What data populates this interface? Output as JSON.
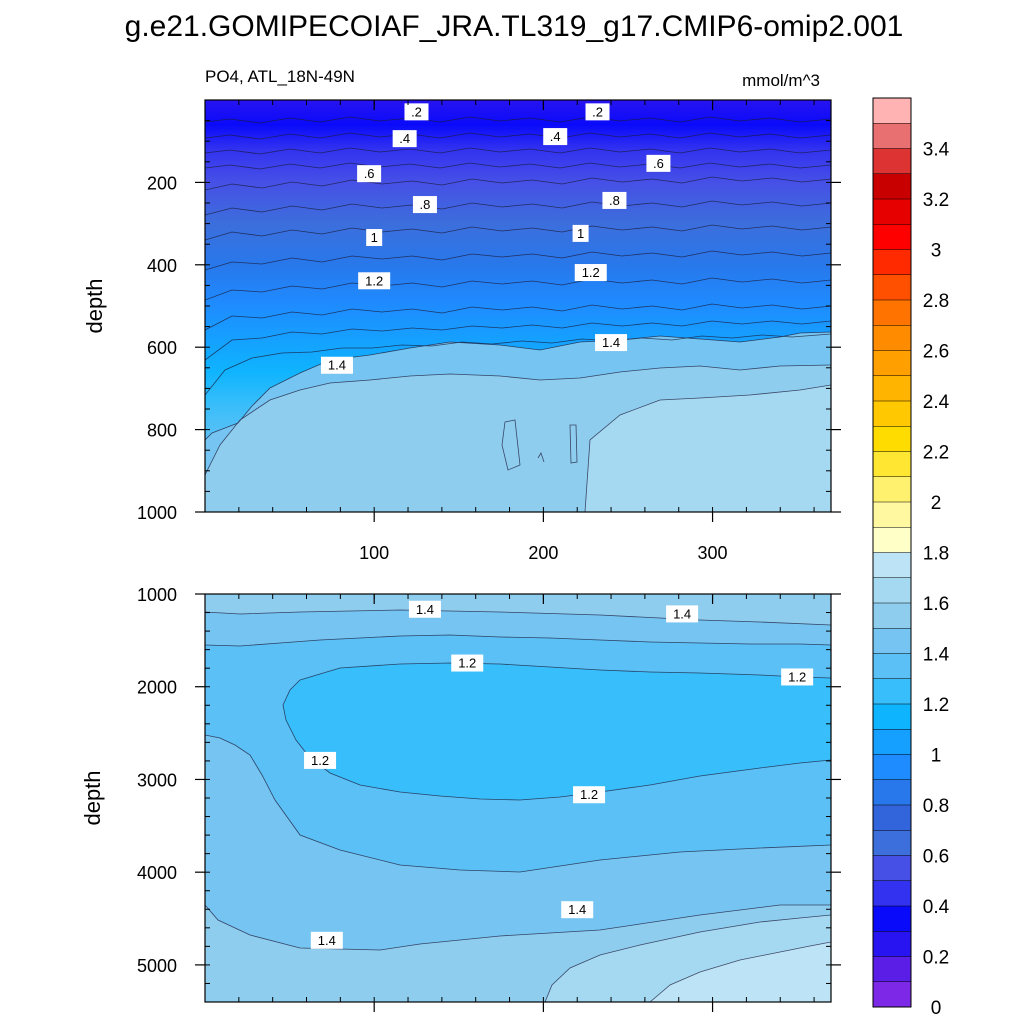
{
  "figure": {
    "title": "g.e21.GOMIPECOIAF_JRA.TL319_g17.CMIP6-omip2.001",
    "subtitle_left": "PO4, ATL_18N-49N",
    "subtitle_right": "mmol/m^3"
  },
  "chart_data": [
    {
      "type": "contour",
      "name": "upper panel",
      "variable": "PO4",
      "region": "ATL_18N-49N",
      "units": "mmol/m^3",
      "xlabel": "",
      "ylabel": "depth",
      "xlim": [
        0,
        370
      ],
      "ylim": [
        0,
        1000
      ],
      "y_reversed": true,
      "x_ticks": [
        100,
        200,
        300
      ],
      "y_ticks": [
        200,
        400,
        600,
        800,
        1000
      ],
      "contour_labels": [
        {
          "text": ".2",
          "x": 125,
          "y": 30
        },
        {
          "text": ".2",
          "x": 232,
          "y": 30
        },
        {
          "text": ".4",
          "x": 118,
          "y": 95
        },
        {
          "text": ".4",
          "x": 207,
          "y": 90
        },
        {
          "text": ".6",
          "x": 97,
          "y": 180
        },
        {
          "text": ".6",
          "x": 268,
          "y": 155
        },
        {
          "text": ".8",
          "x": 130,
          "y": 255
        },
        {
          "text": ".8",
          "x": 242,
          "y": 245
        },
        {
          "text": "1",
          "x": 100,
          "y": 335
        },
        {
          "text": "1",
          "x": 222,
          "y": 325
        },
        {
          "text": "1.2",
          "x": 100,
          "y": 440
        },
        {
          "text": "1.2",
          "x": 228,
          "y": 420
        },
        {
          "text": "1.4",
          "x": 240,
          "y": 590
        },
        {
          "text": "1.4",
          "x": 78,
          "y": 645
        }
      ]
    },
    {
      "type": "contour",
      "name": "lower panel",
      "variable": "PO4",
      "units": "mmol/m^3",
      "xlabel": "",
      "ylabel": "depth",
      "xlim": [
        0,
        370
      ],
      "ylim": [
        1000,
        5400
      ],
      "y_reversed": true,
      "x_ticks": [
        100,
        200,
        300
      ],
      "y_ticks": [
        1000,
        2000,
        3000,
        4000,
        5000
      ],
      "contour_labels": [
        {
          "text": "1.4",
          "x": 130,
          "y": 1170
        },
        {
          "text": "1.4",
          "x": 282,
          "y": 1220
        },
        {
          "text": "1.2",
          "x": 155,
          "y": 1750
        },
        {
          "text": "1.2",
          "x": 350,
          "y": 1900
        },
        {
          "text": "1.2",
          "x": 68,
          "y": 2800
        },
        {
          "text": "1.2",
          "x": 227,
          "y": 3170
        },
        {
          "text": "1.4",
          "x": 220,
          "y": 4410
        },
        {
          "text": "1.4",
          "x": 72,
          "y": 4740
        }
      ]
    }
  ],
  "colorbar": {
    "labels": [
      "3.4",
      "3.2",
      "3",
      "2.8",
      "2.6",
      "2.4",
      "2.2",
      "2",
      "1.8",
      "1.6",
      "1.4",
      "1.2",
      "1",
      "0.8",
      "0.6",
      "0.4",
      "0.2",
      "0"
    ],
    "colors": [
      "#FFB3B3",
      "#E87070",
      "#DD3333",
      "#C80000",
      "#E60000",
      "#FF0000",
      "#FF2A00",
      "#FF5000",
      "#FF7300",
      "#FF8C00",
      "#FFA000",
      "#FFB400",
      "#FFC800",
      "#FFDC00",
      "#FFE632",
      "#FFF06E",
      "#FFF8A0",
      "#FFFFC8",
      "#BCE4F6",
      "#A5D9F2",
      "#8FCDEF",
      "#75C4F1",
      "#5BC0F5",
      "#38BEFA",
      "#0FB4FF",
      "#15A0FF",
      "#1E8CFF",
      "#2878EB",
      "#3264DC",
      "#3C6EDC",
      "#4650E6",
      "#3232F0",
      "#0A0AFA",
      "#2814F0",
      "#5A1EE6",
      "#7D28E6"
    ]
  }
}
